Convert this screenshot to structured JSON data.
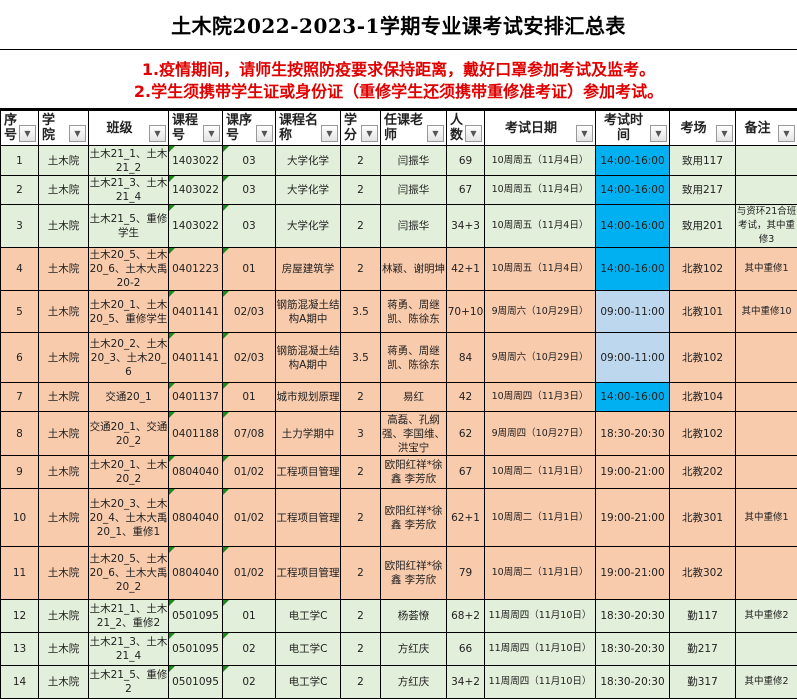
{
  "title": "土木院2022-2023-1学期专业课考试安排汇总表",
  "notes": [
    "1.疫情期间，请师生按照防疫要求保持距离，戴好口罩参加考试及监考。",
    "2.学生须携带学生证或身份证（重修学生还须携带重修准考证）参加考试。"
  ],
  "columns": [
    "序号",
    "学院",
    "班级",
    "课程号",
    "课序号",
    "课程名称",
    "学分",
    "任课老师",
    "人数",
    "考试日期",
    "考试时间",
    "考场",
    "备注"
  ],
  "colors": {
    "green_row": "#e2efda",
    "orange_row": "#f8cbad",
    "time_blue": "#00b0f0",
    "time_light_blue": "#bdd7ee",
    "notes_red": "#e00000"
  },
  "rows": [
    [
      "1",
      "土木院",
      "土木21_1、土木21_2",
      "1403022",
      "03",
      "大学化学",
      "2",
      "闫振华",
      "69",
      "10周周五（11月4日）",
      "14:00-16:00",
      "致用117",
      ""
    ],
    [
      "2",
      "土木院",
      "土木21_3、土木21_4",
      "1403022",
      "03",
      "大学化学",
      "2",
      "闫振华",
      "67",
      "10周周五（11月4日）",
      "14:00-16:00",
      "致用217",
      ""
    ],
    [
      "3",
      "土木院",
      "土木21_5、重修学生",
      "1403022",
      "03",
      "大学化学",
      "2",
      "闫振华",
      "34+3",
      "10周周五（11月4日）",
      "14:00-16:00",
      "致用201",
      "与资环21合班考试，其中重修3"
    ],
    [
      "4",
      "土木院",
      "土木20_5、土木20_6、土木大禹20-2",
      "0401223",
      "01",
      "房屋建筑学",
      "2",
      "林颖、谢明坤",
      "42+1",
      "10周周五（11月4日）",
      "14:00-16:00",
      "北教102",
      "其中重修1"
    ],
    [
      "5",
      "土木院",
      "土木20_1、土木20_5、重修学生",
      "0401141",
      "02/03",
      "钢筋混凝土结构A期中",
      "3.5",
      "蒋勇、周继凯、陈徐东",
      "70+10",
      "9周周六（10月29日）",
      "09:00-11:00",
      "北教101",
      "其中重修10"
    ],
    [
      "6",
      "土木院",
      "土木20_2、土木20_3、土木20_6",
      "0401141",
      "02/03",
      "钢筋混凝土结构A期中",
      "3.5",
      "蒋勇、周继凯、陈徐东",
      "84",
      "9周周六（10月29日）",
      "09:00-11:00",
      "北教102",
      ""
    ],
    [
      "7",
      "土木院",
      "交通20_1",
      "0401137",
      "01",
      "城市规划原理",
      "2",
      "易红",
      "42",
      "10周周四（11月3日）",
      "14:00-16:00",
      "北教104",
      ""
    ],
    [
      "8",
      "土木院",
      "交通20_1、交通20_2",
      "0401188",
      "07/08",
      "土力学期中",
      "3",
      "高磊、孔纲强、李国维、洪宝宁",
      "62",
      "9周周四（10月27日）",
      "18:30-20:30",
      "北教102",
      ""
    ],
    [
      "9",
      "土木院",
      "土木20_1、土木20_2",
      "0804040",
      "01/02",
      "工程项目管理",
      "2",
      "欧阳红祥*徐鑫 李芳欣",
      "67",
      "10周周二（11月1日）",
      "19:00-21:00",
      "北教202",
      ""
    ],
    [
      "10",
      "土木院",
      "土木20_3、土木20_4、土木大禹20_1、重修1",
      "0804040",
      "01/02",
      "工程项目管理",
      "2",
      "欧阳红祥*徐鑫 李芳欣",
      "62+1",
      "10周周二（11月1日）",
      "19:00-21:00",
      "北教301",
      "其中重修1"
    ],
    [
      "11",
      "土木院",
      "土木20_5、土木20_6、土木大禹20_2",
      "0804040",
      "01/02",
      "工程项目管理",
      "2",
      "欧阳红祥*徐鑫 李芳欣",
      "79",
      "10周周二（11月1日）",
      "19:00-21:00",
      "北教302",
      ""
    ],
    [
      "12",
      "土木院",
      "土木21_1、土木21_2、重修2",
      "0501095",
      "01",
      "电工学C",
      "2",
      "杨荟憭",
      "68+2",
      "11周周四（11月10日）",
      "18:30-20:30",
      "勤117",
      "其中重修2"
    ],
    [
      "13",
      "土木院",
      "土木21_3、土木21_4",
      "0501095",
      "02",
      "电工学C",
      "2",
      "方红庆",
      "66",
      "11周周四（11月10日）",
      "18:30-20:30",
      "勤217",
      ""
    ],
    [
      "14",
      "土木院",
      "土木21_5、重修2",
      "0501095",
      "02",
      "电工学C",
      "2",
      "方红庆",
      "34+2",
      "11周周四（11月10日）",
      "18:30-20:30",
      "勤317",
      "其中重修2"
    ]
  ]
}
